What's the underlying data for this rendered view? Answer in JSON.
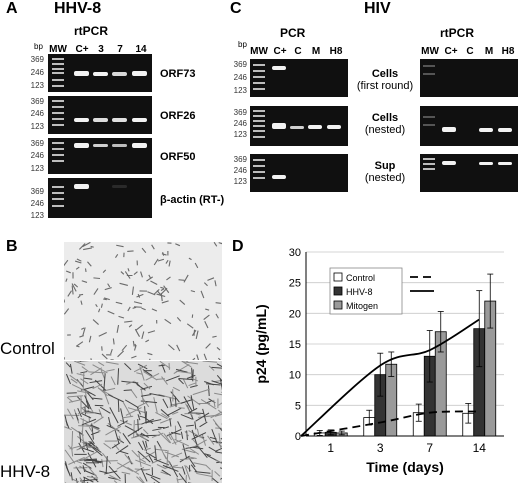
{
  "panelA": {
    "letter": "A",
    "title": "HHV-8",
    "method": "rtPCR",
    "bp_unit": "bp",
    "lanes": [
      "MW",
      "C+",
      "3",
      "7",
      "14"
    ],
    "gels": [
      {
        "label": "ORF73",
        "markers": [
          "369",
          "246",
          "123"
        ]
      },
      {
        "label": "ORF26",
        "markers": [
          "369",
          "246",
          "123"
        ]
      },
      {
        "label": "ORF50",
        "markers": [
          "369",
          "246",
          "123"
        ]
      },
      {
        "label_prefix": "β-actin",
        "label_suffix": "(RT-)",
        "markers": [
          "369",
          "246",
          "123"
        ]
      }
    ]
  },
  "panelB": {
    "letter": "B",
    "images": [
      {
        "label": "Control"
      },
      {
        "label": "HHV-8"
      }
    ]
  },
  "panelC": {
    "letter": "C",
    "title": "HIV",
    "bp_unit": "bp",
    "left_method": "PCR",
    "right_method": "rtPCR",
    "lanes": [
      "MW",
      "C+",
      "C",
      "M",
      "H8"
    ],
    "rows": [
      {
        "label": "Cells",
        "sub": "(first round)",
        "markers": [
          "369",
          "246",
          "123"
        ]
      },
      {
        "label": "Cells",
        "sub": "(nested)",
        "markers": [
          "369",
          "246",
          "123"
        ]
      },
      {
        "label": "Sup",
        "sub": "(nested)",
        "markers": [
          "369",
          "246",
          "123"
        ]
      }
    ]
  },
  "panelD": {
    "letter": "D"
  },
  "chart_data": {
    "type": "bar",
    "xlabel": "Time (days)",
    "ylabel": "p24 (pg/mL)",
    "ylim": [
      0,
      30
    ],
    "yticks": [
      0,
      5,
      10,
      15,
      20,
      25,
      30
    ],
    "categories": [
      "1",
      "3",
      "7",
      "14"
    ],
    "series": [
      {
        "name": "Control",
        "color": "#ffffff",
        "values": [
          0.5,
          3,
          3.8,
          3.7
        ],
        "errors": [
          0.4,
          1.2,
          1.4,
          1.6
        ],
        "trend": "dashed"
      },
      {
        "name": "HHV-8",
        "color": "#333333",
        "values": [
          0.6,
          10,
          13,
          17.5
        ],
        "errors": [
          0.4,
          3.5,
          4.2,
          6.2
        ],
        "trend": "solid"
      },
      {
        "name": "Mitogen",
        "color": "#9a9a9a",
        "values": [
          0.5,
          11.7,
          17,
          22
        ],
        "errors": [
          0.3,
          2,
          3.3,
          4.4
        ]
      }
    ],
    "trend_lines": [
      {
        "series": "Control",
        "style": "dashed",
        "values": [
          0,
          2.2,
          3.8,
          4
        ]
      },
      {
        "series": "HHV-8",
        "style": "solid",
        "values": [
          0,
          11.5,
          14,
          19
        ]
      }
    ],
    "grid": "horizontal",
    "legend": "top-left"
  }
}
